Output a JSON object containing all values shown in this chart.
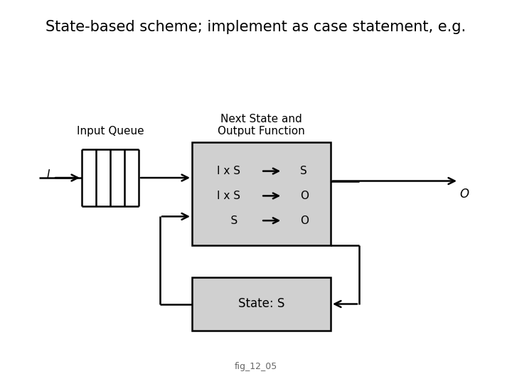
{
  "title": "State-based scheme; implement as case statement, e.g.",
  "title_fontsize": 15,
  "caption": "fig_12_05",
  "bg_color": "#ffffff",
  "box_fill": "#d0d0d0",
  "box_edge": "#000000",
  "label_input_queue": "Input Queue",
  "label_next_state": "Next State and\nOutput Function",
  "label_state_s": "State: S",
  "label_I": "I",
  "label_O": "O",
  "line1": "I x S",
  "arrow1": "→",
  "result1": "S",
  "line2": "I x S",
  "arrow2": "→",
  "result2": "O",
  "line3": "S",
  "arrow3": "→",
  "result3": "O"
}
